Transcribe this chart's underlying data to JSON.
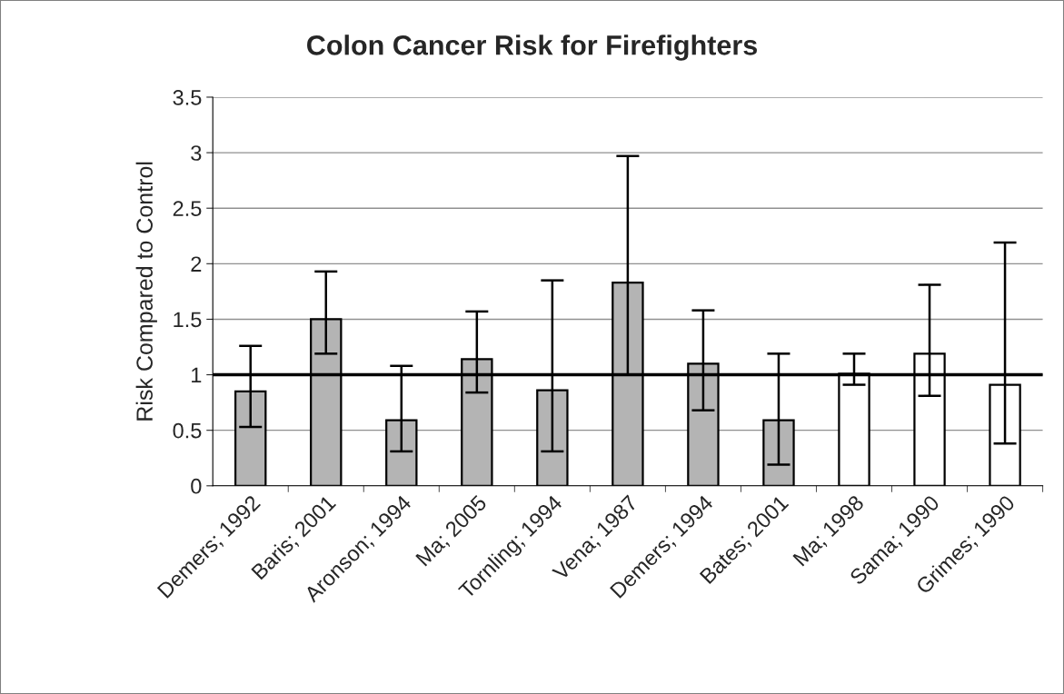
{
  "chart_data": {
    "type": "bar",
    "title": "Colon Cancer Risk for Firefighters",
    "ylabel": "Risk Compared to Control",
    "categories": [
      "Demers; 1992",
      "Baris; 2001",
      "Aronson; 1994",
      "Ma; 2005",
      "Tornling; 1994",
      "Vena; 1987",
      "Demers; 1994",
      "Bates; 2001",
      "Ma; 1998",
      "Sama; 1990",
      "Grimes; 1990"
    ],
    "values": [
      0.85,
      1.5,
      0.59,
      1.14,
      0.86,
      1.83,
      1.1,
      0.59,
      1.01,
      1.19,
      0.91
    ],
    "colors": [
      "#b4b4b4",
      "#b4b4b4",
      "#b4b4b4",
      "#b4b4b4",
      "#b4b4b4",
      "#b4b4b4",
      "#b4b4b4",
      "#b4b4b4",
      "#ffffff",
      "#ffffff",
      "#ffffff"
    ],
    "errors": [
      [
        0.53,
        1.26
      ],
      [
        1.19,
        1.93
      ],
      [
        0.31,
        1.08
      ],
      [
        0.84,
        1.57
      ],
      [
        0.31,
        1.85
      ],
      [
        1.0,
        2.97
      ],
      [
        0.68,
        1.58
      ],
      [
        0.19,
        1.19
      ],
      [
        0.91,
        1.19
      ],
      [
        0.81,
        1.81
      ],
      [
        0.38,
        2.19
      ]
    ],
    "ylim": [
      0,
      3.5
    ],
    "yticks": [
      0,
      0.5,
      1,
      1.5,
      2,
      2.5,
      3,
      3.5
    ],
    "grid": "y",
    "ref_lines": [
      {
        "axis": "y",
        "value": 1,
        "color": "#000000"
      }
    ]
  }
}
